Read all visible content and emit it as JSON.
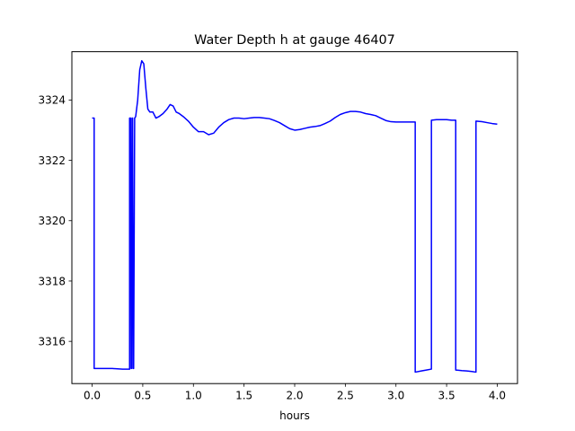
{
  "chart_data": {
    "type": "line",
    "title": "Water Depth h at gauge 46407",
    "xlabel": "hours",
    "ylabel": "",
    "xlim": [
      -0.2,
      4.2
    ],
    "ylim": [
      3314.6,
      3325.6
    ],
    "xticks": [
      {
        "value": 0.0,
        "label": "0.0"
      },
      {
        "value": 0.5,
        "label": "0.5"
      },
      {
        "value": 1.0,
        "label": "1.0"
      },
      {
        "value": 1.5,
        "label": "1.5"
      },
      {
        "value": 2.0,
        "label": "2.0"
      },
      {
        "value": 2.5,
        "label": "2.5"
      },
      {
        "value": 3.0,
        "label": "3.0"
      },
      {
        "value": 3.5,
        "label": "3.5"
      },
      {
        "value": 4.0,
        "label": "4.0"
      }
    ],
    "yticks": [
      {
        "value": 3316,
        "label": "3316"
      },
      {
        "value": 3318,
        "label": "3318"
      },
      {
        "value": 3320,
        "label": "3320"
      },
      {
        "value": 3322,
        "label": "3322"
      },
      {
        "value": 3324,
        "label": "3324"
      }
    ],
    "grid": false,
    "series": [
      {
        "color": "#0000ff",
        "x": [
          0.0,
          0.02,
          0.02,
          0.1,
          0.2,
          0.3,
          0.37,
          0.37,
          0.38,
          0.385,
          0.39,
          0.395,
          0.4,
          0.405,
          0.41,
          0.42,
          0.43,
          0.45,
          0.47,
          0.49,
          0.51,
          0.53,
          0.55,
          0.57,
          0.6,
          0.63,
          0.66,
          0.7,
          0.74,
          0.77,
          0.8,
          0.83,
          0.86,
          0.9,
          0.95,
          1.0,
          1.05,
          1.1,
          1.15,
          1.2,
          1.25,
          1.3,
          1.35,
          1.4,
          1.45,
          1.5,
          1.55,
          1.6,
          1.65,
          1.7,
          1.75,
          1.8,
          1.85,
          1.9,
          1.95,
          2.0,
          2.05,
          2.1,
          2.15,
          2.2,
          2.25,
          2.3,
          2.35,
          2.4,
          2.45,
          2.5,
          2.55,
          2.6,
          2.65,
          2.7,
          2.75,
          2.8,
          2.85,
          2.9,
          2.95,
          3.0,
          3.05,
          3.1,
          3.15,
          3.19,
          3.19,
          3.25,
          3.3,
          3.35,
          3.35,
          3.4,
          3.45,
          3.5,
          3.55,
          3.59,
          3.59,
          3.65,
          3.7,
          3.75,
          3.79,
          3.79,
          3.85,
          3.9,
          3.95,
          4.0
        ],
        "y": [
          3323.4,
          3323.4,
          3315.1,
          3315.1,
          3315.1,
          3315.08,
          3315.08,
          3323.4,
          3323.4,
          3315.1,
          3315.1,
          3323.4,
          3323.4,
          3315.1,
          3315.1,
          3323.4,
          3323.45,
          3324.0,
          3325.0,
          3325.3,
          3325.2,
          3324.4,
          3323.7,
          3323.6,
          3323.6,
          3323.4,
          3323.45,
          3323.55,
          3323.7,
          3323.85,
          3323.8,
          3323.6,
          3323.55,
          3323.45,
          3323.3,
          3323.1,
          3322.95,
          3322.95,
          3322.85,
          3322.9,
          3323.1,
          3323.25,
          3323.35,
          3323.4,
          3323.4,
          3323.38,
          3323.4,
          3323.42,
          3323.42,
          3323.4,
          3323.38,
          3323.32,
          3323.25,
          3323.15,
          3323.05,
          3323.0,
          3323.02,
          3323.06,
          3323.1,
          3323.12,
          3323.15,
          3323.22,
          3323.3,
          3323.42,
          3323.52,
          3323.58,
          3323.62,
          3323.62,
          3323.6,
          3323.55,
          3323.52,
          3323.48,
          3323.4,
          3323.32,
          3323.28,
          3323.27,
          3323.27,
          3323.27,
          3323.27,
          3323.27,
          3314.98,
          3315.02,
          3315.05,
          3315.08,
          3323.33,
          3323.35,
          3323.35,
          3323.35,
          3323.33,
          3323.33,
          3315.05,
          3315.03,
          3315.02,
          3315.0,
          3314.98,
          3323.3,
          3323.28,
          3323.25,
          3323.22,
          3323.2
        ]
      }
    ]
  }
}
